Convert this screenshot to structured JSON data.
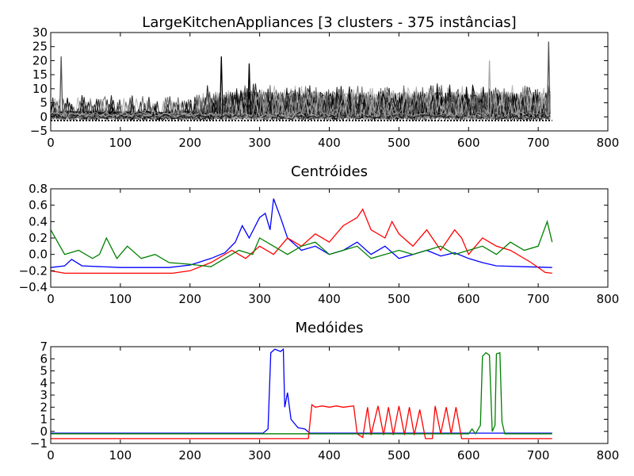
{
  "chart_data": [
    {
      "type": "line",
      "title": "LargeKitchenAppliances [3 clusters - 375 instâncias]",
      "xlabel": "",
      "ylabel": "",
      "xlim": [
        0,
        800
      ],
      "ylim": [
        -5,
        30
      ],
      "xticks": [
        "0",
        "100",
        "200",
        "300",
        "400",
        "500",
        "600",
        "700",
        "800"
      ],
      "yticks": [
        "−5",
        "0",
        "5",
        "10",
        "15",
        "20",
        "25",
        "30"
      ],
      "grid": false,
      "series_colors": [
        "#000000",
        "#555555",
        "#aaaaaa"
      ],
      "notes": "Overlay of all 375 raw series (length ~720), colored black, dark gray and light gray by cluster; baseline around -1 to 0 with spikes up to ~27 near x=715, ~21 near x=245 and x=15."
    },
    {
      "type": "line",
      "title": "Centróides",
      "xlabel": "",
      "ylabel": "",
      "xlim": [
        0,
        800
      ],
      "ylim": [
        -0.4,
        0.8
      ],
      "xticks": [
        "0",
        "100",
        "200",
        "300",
        "400",
        "500",
        "600",
        "700",
        "800"
      ],
      "yticks": [
        "−0.4",
        "−0.2",
        "0.0",
        "0.2",
        "0.4",
        "0.6",
        "0.8"
      ],
      "grid": false,
      "series": [
        {
          "color": "#0000ff",
          "points": [
            [
              0,
              -0.16
            ],
            [
              20,
              -0.14
            ],
            [
              30,
              -0.06
            ],
            [
              45,
              -0.14
            ],
            [
              100,
              -0.16
            ],
            [
              170,
              -0.16
            ],
            [
              200,
              -0.13
            ],
            [
              230,
              -0.05
            ],
            [
              250,
              0.02
            ],
            [
              265,
              0.15
            ],
            [
              275,
              0.35
            ],
            [
              285,
              0.2
            ],
            [
              300,
              0.45
            ],
            [
              308,
              0.5
            ],
            [
              315,
              0.3
            ],
            [
              320,
              0.68
            ],
            [
              330,
              0.45
            ],
            [
              340,
              0.2
            ],
            [
              360,
              0.05
            ],
            [
              380,
              0.1
            ],
            [
              400,
              0.0
            ],
            [
              420,
              0.05
            ],
            [
              440,
              0.15
            ],
            [
              460,
              0.0
            ],
            [
              480,
              0.1
            ],
            [
              500,
              -0.05
            ],
            [
              520,
              0.0
            ],
            [
              540,
              0.05
            ],
            [
              560,
              -0.02
            ],
            [
              580,
              0.02
            ],
            [
              600,
              -0.05
            ],
            [
              620,
              -0.1
            ],
            [
              640,
              -0.14
            ],
            [
              680,
              -0.15
            ],
            [
              720,
              -0.16
            ]
          ]
        },
        {
          "color": "#ff0000",
          "points": [
            [
              0,
              -0.2
            ],
            [
              20,
              -0.23
            ],
            [
              60,
              -0.23
            ],
            [
              175,
              -0.23
            ],
            [
              200,
              -0.2
            ],
            [
              230,
              -0.1
            ],
            [
              260,
              0.05
            ],
            [
              280,
              -0.05
            ],
            [
              300,
              0.1
            ],
            [
              320,
              0.0
            ],
            [
              340,
              0.2
            ],
            [
              360,
              0.1
            ],
            [
              380,
              0.25
            ],
            [
              400,
              0.15
            ],
            [
              420,
              0.35
            ],
            [
              440,
              0.45
            ],
            [
              448,
              0.55
            ],
            [
              460,
              0.3
            ],
            [
              480,
              0.2
            ],
            [
              490,
              0.4
            ],
            [
              500,
              0.25
            ],
            [
              520,
              0.1
            ],
            [
              540,
              0.3
            ],
            [
              560,
              0.05
            ],
            [
              580,
              0.3
            ],
            [
              590,
              0.2
            ],
            [
              600,
              0.0
            ],
            [
              620,
              0.2
            ],
            [
              640,
              0.1
            ],
            [
              660,
              0.05
            ],
            [
              690,
              -0.1
            ],
            [
              710,
              -0.22
            ],
            [
              720,
              -0.23
            ]
          ]
        },
        {
          "color": "#008000",
          "points": [
            [
              0,
              0.3
            ],
            [
              10,
              0.15
            ],
            [
              20,
              0.0
            ],
            [
              40,
              0.05
            ],
            [
              60,
              -0.05
            ],
            [
              70,
              0.0
            ],
            [
              80,
              0.2
            ],
            [
              95,
              -0.05
            ],
            [
              110,
              0.1
            ],
            [
              130,
              -0.05
            ],
            [
              150,
              0.0
            ],
            [
              170,
              -0.1
            ],
            [
              200,
              -0.12
            ],
            [
              230,
              -0.15
            ],
            [
              250,
              -0.05
            ],
            [
              270,
              0.05
            ],
            [
              290,
              0.0
            ],
            [
              300,
              0.2
            ],
            [
              320,
              0.1
            ],
            [
              340,
              0.0
            ],
            [
              360,
              0.1
            ],
            [
              380,
              0.15
            ],
            [
              400,
              0.0
            ],
            [
              420,
              0.05
            ],
            [
              440,
              0.1
            ],
            [
              460,
              -0.05
            ],
            [
              480,
              0.0
            ],
            [
              500,
              0.05
            ],
            [
              520,
              0.0
            ],
            [
              540,
              0.05
            ],
            [
              560,
              0.1
            ],
            [
              580,
              0.0
            ],
            [
              600,
              0.05
            ],
            [
              620,
              0.1
            ],
            [
              640,
              0.0
            ],
            [
              660,
              0.15
            ],
            [
              680,
              0.05
            ],
            [
              700,
              0.1
            ],
            [
              713,
              0.4
            ],
            [
              720,
              0.15
            ]
          ]
        }
      ]
    },
    {
      "type": "line",
      "title": "Medóides",
      "xlabel": "",
      "ylabel": "",
      "xlim": [
        0,
        800
      ],
      "ylim": [
        -1,
        7
      ],
      "xticks": [
        "0",
        "100",
        "200",
        "300",
        "400",
        "500",
        "600",
        "700",
        "800"
      ],
      "yticks": [
        "−1",
        "0",
        "1",
        "2",
        "3",
        "4",
        "5",
        "6",
        "7"
      ],
      "grid": false,
      "series": [
        {
          "color": "#0000ff",
          "points": [
            [
              0,
              -0.15
            ],
            [
              305,
              -0.15
            ],
            [
              312,
              0.2
            ],
            [
              316,
              6.5
            ],
            [
              322,
              6.8
            ],
            [
              330,
              6.6
            ],
            [
              334,
              6.8
            ],
            [
              336,
              2.0
            ],
            [
              340,
              3.2
            ],
            [
              345,
              1.0
            ],
            [
              355,
              0.3
            ],
            [
              365,
              0.2
            ],
            [
              372,
              -0.15
            ],
            [
              720,
              -0.15
            ]
          ]
        },
        {
          "color": "#ff0000",
          "points": [
            [
              0,
              -0.6
            ],
            [
              370,
              -0.6
            ],
            [
              375,
              2.2
            ],
            [
              380,
              2.0
            ],
            [
              390,
              2.1
            ],
            [
              400,
              2.0
            ],
            [
              410,
              2.1
            ],
            [
              420,
              2.0
            ],
            [
              435,
              2.1
            ],
            [
              440,
              -0.2
            ],
            [
              448,
              -0.5
            ],
            [
              455,
              2.0
            ],
            [
              460,
              -0.3
            ],
            [
              470,
              2.1
            ],
            [
              478,
              -0.3
            ],
            [
              485,
              2.0
            ],
            [
              492,
              -0.3
            ],
            [
              500,
              2.1
            ],
            [
              508,
              -0.3
            ],
            [
              515,
              2.0
            ],
            [
              522,
              -0.3
            ],
            [
              530,
              1.8
            ],
            [
              538,
              -0.6
            ],
            [
              548,
              -0.6
            ],
            [
              552,
              2.1
            ],
            [
              560,
              -0.2
            ],
            [
              568,
              2.0
            ],
            [
              575,
              -0.2
            ],
            [
              582,
              2.0
            ],
            [
              590,
              -0.6
            ],
            [
              720,
              -0.6
            ]
          ]
        },
        {
          "color": "#008000",
          "points": [
            [
              0,
              -0.2
            ],
            [
              600,
              -0.2
            ],
            [
              605,
              0.2
            ],
            [
              610,
              -0.2
            ],
            [
              617,
              0.5
            ],
            [
              620,
              6.2
            ],
            [
              625,
              6.5
            ],
            [
              630,
              6.3
            ],
            [
              634,
              0.0
            ],
            [
              638,
              0.5
            ],
            [
              640,
              6.4
            ],
            [
              645,
              6.5
            ],
            [
              648,
              0.8
            ],
            [
              652,
              -0.2
            ],
            [
              720,
              -0.2
            ]
          ]
        }
      ]
    }
  ]
}
